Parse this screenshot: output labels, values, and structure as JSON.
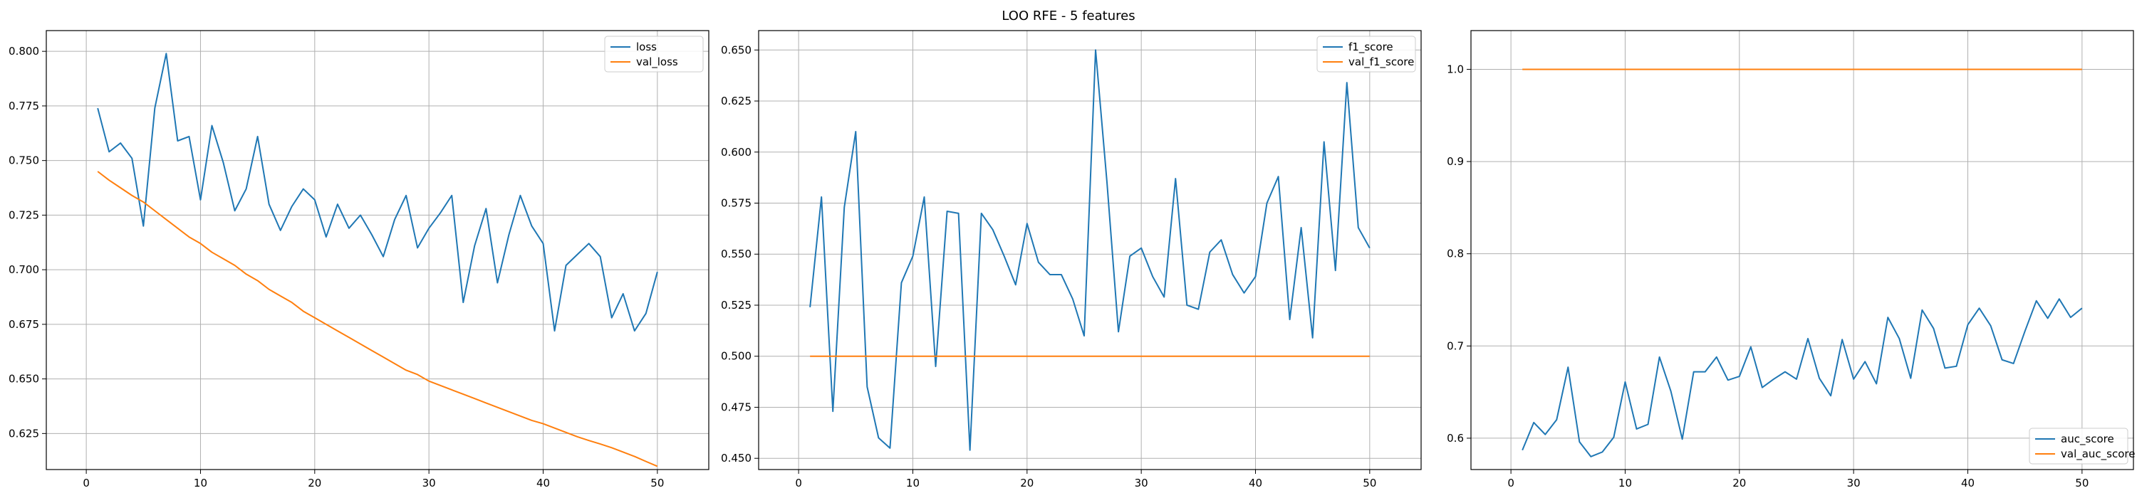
{
  "figure": {
    "title": "LOO RFE - 5 features"
  },
  "colors": {
    "train": "#1f77b4",
    "val": "#ff7f0e",
    "grid": "#b0b0b0",
    "axes": "#000000"
  },
  "chart_data": [
    {
      "type": "line",
      "xlim": [
        -3.5,
        54.5
      ],
      "ylim": [
        0.6085,
        0.8095
      ],
      "xticks": [
        0,
        10,
        20,
        30,
        40,
        50
      ],
      "yticks": [
        0.625,
        0.65,
        0.675,
        0.7,
        0.725,
        0.75,
        0.775,
        0.8
      ],
      "ytick_labels": [
        "0.625",
        "0.650",
        "0.675",
        "0.700",
        "0.725",
        "0.750",
        "0.775",
        "0.800"
      ],
      "grid": true,
      "legend": "upper right",
      "x": [
        1,
        2,
        3,
        4,
        5,
        6,
        7,
        8,
        9,
        10,
        11,
        12,
        13,
        14,
        15,
        16,
        17,
        18,
        19,
        20,
        21,
        22,
        23,
        24,
        25,
        26,
        27,
        28,
        29,
        30,
        31,
        32,
        33,
        34,
        35,
        36,
        37,
        38,
        39,
        40,
        41,
        42,
        43,
        44,
        45,
        46,
        47,
        48,
        49,
        50
      ],
      "series": [
        {
          "name": "loss",
          "values": [
            0.774,
            0.754,
            0.758,
            0.751,
            0.72,
            0.774,
            0.799,
            0.759,
            0.761,
            0.732,
            0.766,
            0.749,
            0.727,
            0.737,
            0.761,
            0.73,
            0.718,
            0.729,
            0.737,
            0.732,
            0.715,
            0.73,
            0.719,
            0.725,
            0.716,
            0.706,
            0.723,
            0.734,
            0.71,
            0.719,
            0.726,
            0.734,
            0.685,
            0.711,
            0.728,
            0.694,
            0.716,
            0.734,
            0.72,
            0.712,
            0.672,
            0.702,
            0.707,
            0.712,
            0.706,
            0.678,
            0.689,
            0.672,
            0.68,
            0.699
          ]
        },
        {
          "name": "val_loss",
          "values": [
            0.745,
            0.741,
            0.7375,
            0.734,
            0.731,
            0.727,
            0.723,
            0.719,
            0.715,
            0.712,
            0.708,
            0.705,
            0.702,
            0.698,
            0.695,
            0.691,
            0.688,
            0.685,
            0.681,
            0.678,
            0.675,
            0.672,
            0.669,
            0.666,
            0.663,
            0.66,
            0.657,
            0.654,
            0.652,
            0.649,
            0.647,
            0.645,
            0.643,
            0.641,
            0.639,
            0.637,
            0.635,
            0.633,
            0.631,
            0.6295,
            0.6275,
            0.6255,
            0.6235,
            0.6218,
            0.6202,
            0.6185,
            0.6165,
            0.6145,
            0.6122,
            0.61
          ]
        }
      ]
    },
    {
      "type": "line",
      "xlim": [
        -3.5,
        54.5
      ],
      "ylim": [
        0.4445,
        0.6595
      ],
      "xticks": [
        0,
        10,
        20,
        30,
        40,
        50
      ],
      "yticks": [
        0.45,
        0.475,
        0.5,
        0.525,
        0.55,
        0.575,
        0.6,
        0.625,
        0.65
      ],
      "ytick_labels": [
        "0.450",
        "0.475",
        "0.500",
        "0.525",
        "0.550",
        "0.575",
        "0.600",
        "0.625",
        "0.650"
      ],
      "grid": true,
      "legend": "upper right",
      "x": [
        1,
        2,
        3,
        4,
        5,
        6,
        7,
        8,
        9,
        10,
        11,
        12,
        13,
        14,
        15,
        16,
        17,
        18,
        19,
        20,
        21,
        22,
        23,
        24,
        25,
        26,
        27,
        28,
        29,
        30,
        31,
        32,
        33,
        34,
        35,
        36,
        37,
        38,
        39,
        40,
        41,
        42,
        43,
        44,
        45,
        46,
        47,
        48,
        49,
        50
      ],
      "series": [
        {
          "name": "f1_score",
          "values": [
            0.524,
            0.578,
            0.473,
            0.573,
            0.61,
            0.485,
            0.46,
            0.455,
            0.536,
            0.549,
            0.578,
            0.495,
            0.571,
            0.57,
            0.454,
            0.57,
            0.562,
            0.549,
            0.535,
            0.565,
            0.546,
            0.54,
            0.54,
            0.528,
            0.51,
            0.65,
            0.585,
            0.512,
            0.549,
            0.553,
            0.539,
            0.529,
            0.587,
            0.525,
            0.523,
            0.551,
            0.557,
            0.54,
            0.531,
            0.539,
            0.575,
            0.588,
            0.518,
            0.563,
            0.509,
            0.605,
            0.542,
            0.634,
            0.563,
            0.553
          ]
        },
        {
          "name": "val_f1_score",
          "values": [
            0.5,
            0.5,
            0.5,
            0.5,
            0.5,
            0.5,
            0.5,
            0.5,
            0.5,
            0.5,
            0.5,
            0.5,
            0.5,
            0.5,
            0.5,
            0.5,
            0.5,
            0.5,
            0.5,
            0.5,
            0.5,
            0.5,
            0.5,
            0.5,
            0.5,
            0.5,
            0.5,
            0.5,
            0.5,
            0.5,
            0.5,
            0.5,
            0.5,
            0.5,
            0.5,
            0.5,
            0.5,
            0.5,
            0.5,
            0.5,
            0.5,
            0.5,
            0.5,
            0.5,
            0.5,
            0.5,
            0.5,
            0.5,
            0.5,
            0.5
          ]
        }
      ]
    },
    {
      "type": "line",
      "xlim": [
        -3.5,
        54.5
      ],
      "ylim": [
        0.566,
        1.042
      ],
      "xticks": [
        0,
        10,
        20,
        30,
        40,
        50
      ],
      "yticks": [
        0.6,
        0.7,
        0.8,
        0.9,
        1.0
      ],
      "ytick_labels": [
        "0.6",
        "0.7",
        "0.8",
        "0.9",
        "1.0"
      ],
      "grid": true,
      "legend": "lower right",
      "x": [
        1,
        2,
        3,
        4,
        5,
        6,
        7,
        8,
        9,
        10,
        11,
        12,
        13,
        14,
        15,
        16,
        17,
        18,
        19,
        20,
        21,
        22,
        23,
        24,
        25,
        26,
        27,
        28,
        29,
        30,
        31,
        32,
        33,
        34,
        35,
        36,
        37,
        38,
        39,
        40,
        41,
        42,
        43,
        44,
        45,
        46,
        47,
        48,
        49,
        50
      ],
      "series": [
        {
          "name": "auc_score",
          "values": [
            0.587,
            0.617,
            0.604,
            0.62,
            0.677,
            0.596,
            0.58,
            0.585,
            0.601,
            0.661,
            0.61,
            0.615,
            0.688,
            0.651,
            0.599,
            0.672,
            0.672,
            0.688,
            0.663,
            0.667,
            0.699,
            0.655,
            0.664,
            0.672,
            0.664,
            0.708,
            0.665,
            0.646,
            0.707,
            0.664,
            0.683,
            0.659,
            0.731,
            0.708,
            0.665,
            0.739,
            0.719,
            0.676,
            0.678,
            0.723,
            0.741,
            0.722,
            0.685,
            0.681,
            0.716,
            0.749,
            0.73,
            0.751,
            0.731,
            0.741
          ]
        },
        {
          "name": "val_auc_score",
          "values": [
            1.0,
            1.0,
            1.0,
            1.0,
            1.0,
            1.0,
            1.0,
            1.0,
            1.0,
            1.0,
            1.0,
            1.0,
            1.0,
            1.0,
            1.0,
            1.0,
            1.0,
            1.0,
            1.0,
            1.0,
            1.0,
            1.0,
            1.0,
            1.0,
            1.0,
            1.0,
            1.0,
            1.0,
            1.0,
            1.0,
            1.0,
            1.0,
            1.0,
            1.0,
            1.0,
            1.0,
            1.0,
            1.0,
            1.0,
            1.0,
            1.0,
            1.0,
            1.0,
            1.0,
            1.0,
            1.0,
            1.0,
            1.0,
            1.0,
            1.0
          ]
        }
      ]
    }
  ]
}
